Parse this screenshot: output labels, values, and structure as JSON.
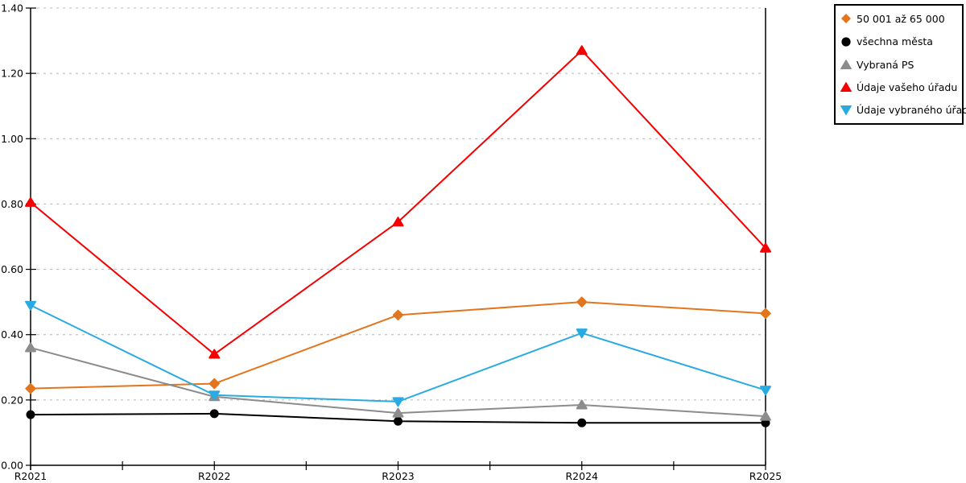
{
  "chart_data": {
    "type": "line",
    "title": "",
    "xlabel": "",
    "ylabel": "",
    "categories": [
      "R2021",
      "R2022",
      "R2023",
      "R2024",
      "R2025"
    ],
    "series": [
      {
        "name": "50 001 až 65 000",
        "marker": "diamond",
        "color": "#E2751D",
        "values": [
          0.235,
          0.25,
          0.46,
          0.5,
          0.465
        ]
      },
      {
        "name": "všechna města",
        "marker": "circle",
        "color": "#000000",
        "values": [
          0.155,
          0.158,
          0.135,
          0.13,
          0.13
        ]
      },
      {
        "name": "Vybraná PS",
        "marker": "triangle-up",
        "color": "#8C8C8C",
        "values": [
          0.36,
          0.21,
          0.16,
          0.185,
          0.15
        ]
      },
      {
        "name": "Údaje vašeho úřadu",
        "marker": "triangle-up",
        "color": "#F40000",
        "values": [
          0.805,
          0.34,
          0.745,
          1.27,
          0.665
        ]
      },
      {
        "name": "Údaje vybraného úřadu",
        "marker": "triangle-down",
        "color": "#29ABE2",
        "values": [
          0.49,
          0.215,
          0.195,
          0.405,
          0.23
        ]
      }
    ],
    "ylim": [
      0,
      1.4
    ],
    "ytick_step": 0.2,
    "ytick_labels": [
      "0.00",
      "0.20",
      "0.40",
      "0.60",
      "0.80",
      "1.00",
      "1.20",
      "1.40"
    ],
    "grid": "horizontal-dashed",
    "grid_color": "#b8b8b8",
    "axis_color": "#000000",
    "legend_position": "top-right",
    "legend_border_color": "#000000"
  }
}
